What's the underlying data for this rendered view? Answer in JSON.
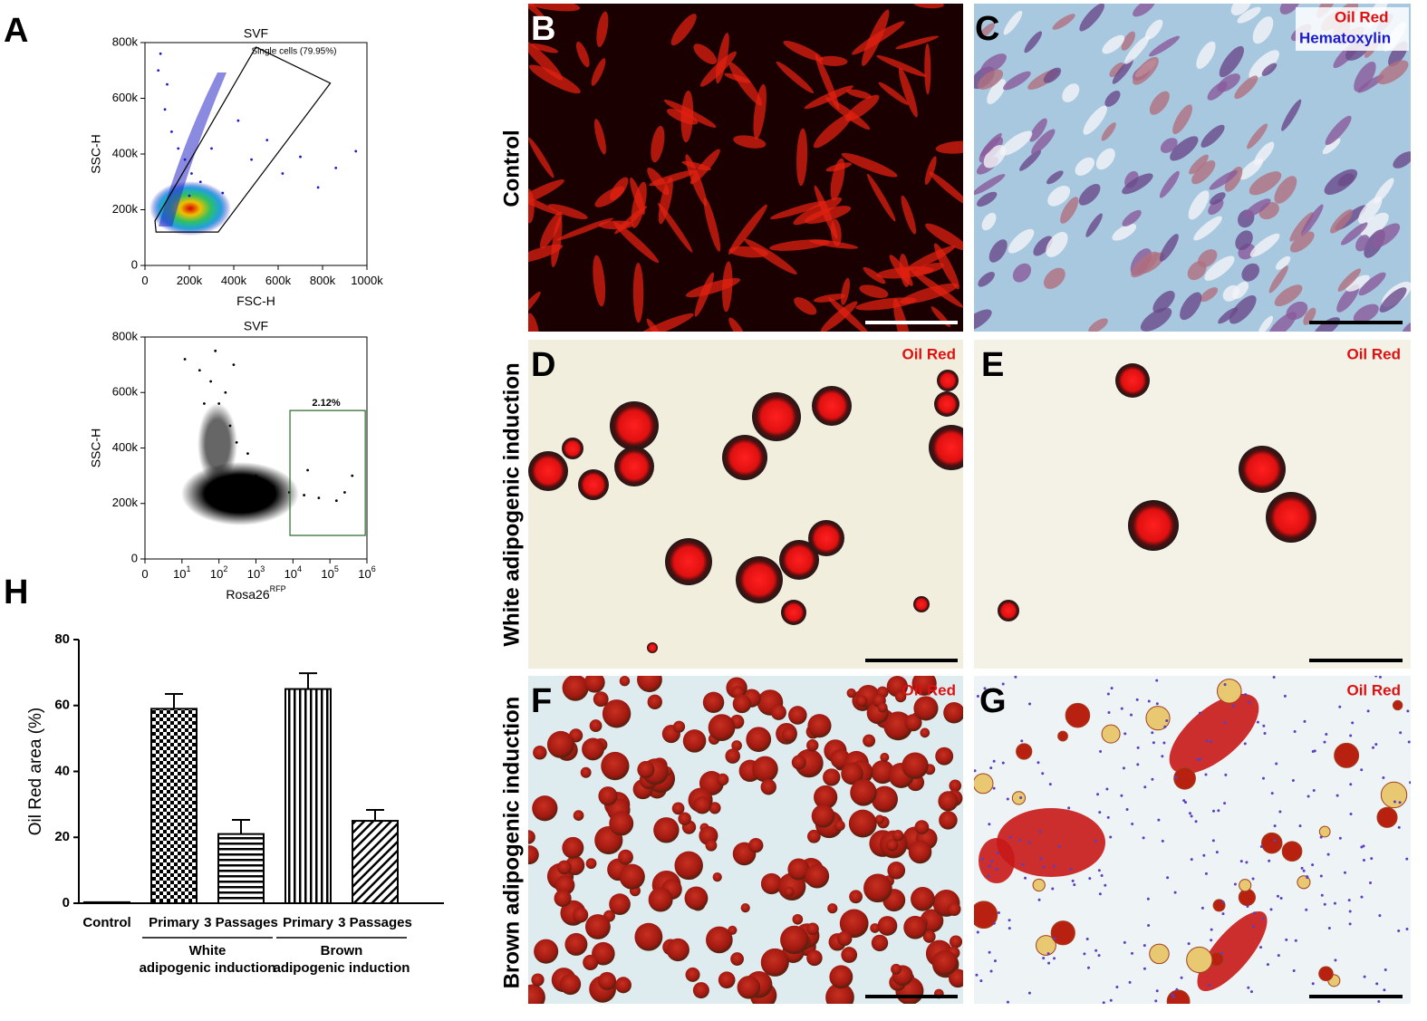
{
  "panel_labels": [
    "A",
    "B",
    "C",
    "D",
    "E",
    "F",
    "G",
    "H"
  ],
  "row_labels": [
    "Control",
    "White adipogenic induction",
    "Brown adipogenic induction"
  ],
  "stain_labels": {
    "oil_red": "Oil Red",
    "hematoxylin": "Hematoxylin"
  },
  "chart_data": [
    {
      "type": "scatter",
      "title": "SVF",
      "x_label": "FSC-H",
      "y_label": "SSC-H",
      "xlim": [
        0,
        1000000
      ],
      "ylim": [
        0,
        800000
      ],
      "xticks": [
        0,
        {
          "value": 200000,
          "label": "200k"
        },
        {
          "value": 400000,
          "label": "400k"
        },
        {
          "value": 600000,
          "label": "600k"
        },
        {
          "value": 800000,
          "label": "800k"
        },
        {
          "value": 1000000,
          "label": "1000k"
        }
      ],
      "yticks": [
        0,
        {
          "value": 200000,
          "label": "200k"
        },
        {
          "value": 400000,
          "label": "400k"
        },
        {
          "value": 600000,
          "label": "600k"
        },
        {
          "value": 800000,
          "label": "800k"
        }
      ],
      "gate": {
        "label": "Single cells (79.95%)",
        "x": [
          500000,
          835000,
          330000,
          50000,
          45000
        ],
        "y": [
          784000,
          654000,
          120000,
          120000,
          160000
        ]
      },
      "series": [
        {
          "color": "#1a1acc",
          "x": [
            60000,
            90000,
            120000,
            150000,
            180000,
            210000,
            250000,
            300000,
            350000,
            420000,
            480000,
            550000,
            620000,
            700000,
            780000,
            860000,
            950000,
            100000,
            70000,
            200000
          ],
          "values": [
            700000,
            560000,
            480000,
            420000,
            380000,
            330000,
            300000,
            420000,
            260000,
            520000,
            380000,
            450000,
            330000,
            390000,
            280000,
            350000,
            410000,
            650000,
            760000,
            250000
          ]
        }
      ]
    },
    {
      "type": "scatter",
      "title": "SVF",
      "x_label": "Rosa26",
      "x_label_sup": "RFP",
      "y_label": "SSC-H",
      "xlim": [
        1,
        1000000
      ],
      "ylim": [
        0,
        800000
      ],
      "log_x": true,
      "xticks": [
        {
          "value": 1,
          "label": "0"
        },
        {
          "value": 10,
          "label": "10",
          "sup": "1"
        },
        {
          "value": 100,
          "label": "10",
          "sup": "2"
        },
        {
          "value": 1000,
          "label": "10",
          "sup": "3"
        },
        {
          "value": 10000,
          "label": "10",
          "sup": "4"
        },
        {
          "value": 100000,
          "label": "10",
          "sup": "5"
        },
        {
          "value": 1000000,
          "label": "10",
          "sup": "6"
        }
      ],
      "yticks": [
        0,
        {
          "value": 200000,
          "label": "200k"
        },
        {
          "value": 400000,
          "label": "400k"
        },
        {
          "value": 600000,
          "label": "600k"
        },
        {
          "value": 800000,
          "label": "800k"
        }
      ],
      "gate": {
        "label": "2.12%",
        "x": [
          8300,
          900000,
          900000,
          8300
        ],
        "y": [
          535000,
          535000,
          85000,
          85000
        ]
      },
      "series": [
        {
          "color": "#000000",
          "x": [
            12,
            30,
            60,
            100,
            150,
            200,
            300,
            600,
            1000,
            3000,
            8000,
            20000,
            50000,
            150000,
            400000,
            40,
            80,
            250,
            25000,
            250000
          ],
          "values": [
            720000,
            680000,
            640000,
            560000,
            600000,
            480000,
            420000,
            380000,
            300000,
            260000,
            240000,
            230000,
            220000,
            210000,
            300000,
            560000,
            750000,
            700000,
            320000,
            240000
          ]
        }
      ]
    },
    {
      "type": "bar",
      "y_label": "Oil Red area (%)",
      "categories": [
        "Control",
        "Primary",
        "3 Passages",
        "Primary",
        "3 Passages"
      ],
      "groups": [
        [
          "White",
          "adipogenic induction"
        ],
        [
          "Brown",
          "adipogenic induction"
        ]
      ],
      "values": [
        0.3,
        59,
        21,
        65,
        25
      ],
      "errors": [
        0,
        4.5,
        4.3,
        4.8,
        3.3
      ],
      "patterns": [
        "solid",
        "checker",
        "hlines",
        "vlines",
        "diagonal"
      ],
      "color": "#000000",
      "ylim": [
        0,
        80
      ],
      "yticks": [
        0,
        20,
        40,
        60,
        80
      ]
    }
  ]
}
